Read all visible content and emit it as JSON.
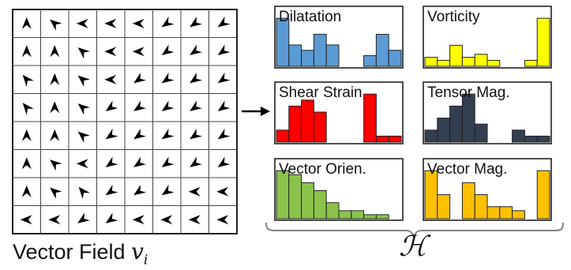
{
  "field": {
    "caption_text": "Vector Field",
    "caption_var": "v",
    "caption_sub": "i",
    "rows": 8,
    "cols": 8,
    "angles_deg": [
      [
        90,
        140,
        180,
        180,
        180,
        215,
        215,
        215
      ],
      [
        90,
        90,
        140,
        180,
        180,
        215,
        215,
        215
      ],
      [
        130,
        90,
        140,
        180,
        215,
        215,
        215,
        215
      ],
      [
        130,
        90,
        140,
        215,
        215,
        215,
        215,
        215
      ],
      [
        90,
        90,
        140,
        215,
        215,
        215,
        215,
        215
      ],
      [
        90,
        140,
        180,
        215,
        215,
        215,
        215,
        215
      ],
      [
        90,
        140,
        130,
        215,
        215,
        215,
        180,
        180
      ],
      [
        180,
        180,
        215,
        215,
        180,
        180,
        180,
        180
      ]
    ]
  },
  "set_label": "ℋ",
  "histograms": [
    {
      "label": "Dilatation",
      "color": "#5B9BD5",
      "values": [
        9,
        4,
        3,
        6,
        4,
        0,
        0,
        2,
        6,
        3
      ]
    },
    {
      "label": "Vorticity",
      "color": "#FFFF00",
      "values": [
        3,
        2,
        7,
        3,
        4,
        2,
        0,
        0,
        2,
        16
      ]
    },
    {
      "label": "Shear Strain",
      "color": "#FF0000",
      "values": [
        2,
        6,
        7,
        5,
        0,
        0,
        0,
        8,
        1,
        1
      ]
    },
    {
      "label": "Tensor Mag.",
      "color": "#333F50",
      "values": [
        2,
        4,
        6,
        8,
        3,
        0,
        0,
        2,
        1,
        1
      ]
    },
    {
      "label": "Vector Orien.",
      "color": "#8BC34A",
      "values": [
        12,
        11,
        9,
        7,
        4,
        2,
        2,
        1,
        1,
        0
      ]
    },
    {
      "label": "Vector Mag.",
      "color": "#FFC000",
      "values": [
        12,
        6,
        0,
        9,
        6,
        3,
        3,
        2,
        0,
        12
      ]
    }
  ]
}
